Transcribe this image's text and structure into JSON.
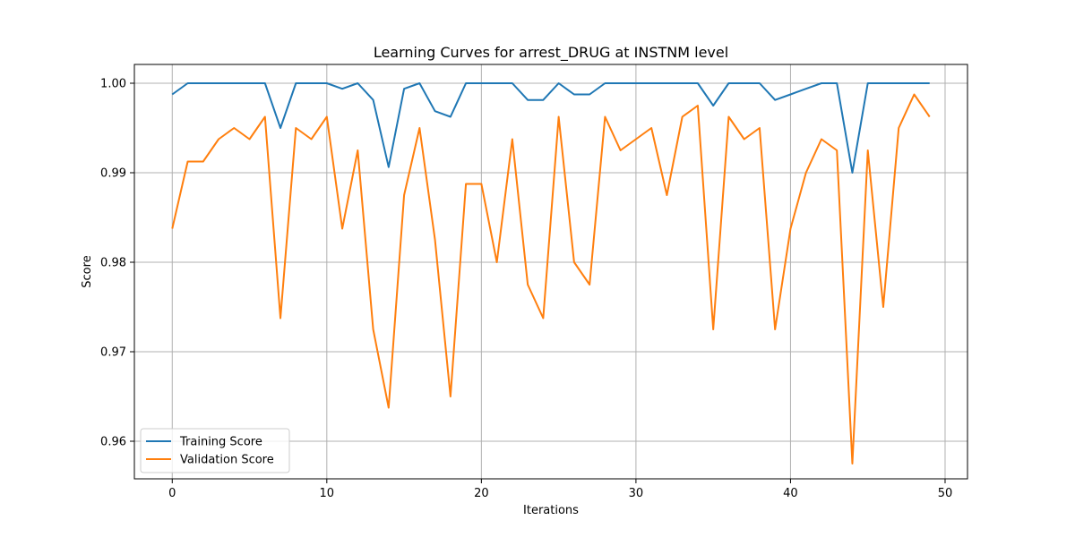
{
  "chart_data": {
    "type": "line",
    "title": "Learning Curves for arrest_DRUG at INSTNM level",
    "xlabel": "Iterations",
    "ylabel": "Score",
    "xlim": [
      -2.45,
      51.45
    ],
    "ylim": [
      0.9558,
      1.0021
    ],
    "xticks": [
      0,
      10,
      20,
      30,
      40,
      50
    ],
    "yticks": [
      0.96,
      0.97,
      0.98,
      0.99,
      1.0
    ],
    "xtick_labels": [
      "0",
      "10",
      "20",
      "30",
      "40",
      "50"
    ],
    "ytick_labels": [
      "0.96",
      "0.97",
      "0.98",
      "0.99",
      "1.00"
    ],
    "grid": true,
    "legend_position": "lower-left",
    "x": [
      0,
      1,
      2,
      3,
      4,
      5,
      6,
      7,
      8,
      9,
      10,
      11,
      12,
      13,
      14,
      15,
      16,
      17,
      18,
      19,
      20,
      21,
      22,
      23,
      24,
      25,
      26,
      27,
      28,
      29,
      30,
      31,
      32,
      33,
      34,
      35,
      36,
      37,
      38,
      39,
      40,
      41,
      42,
      43,
      44,
      45,
      46,
      47,
      48,
      49
    ],
    "series": [
      {
        "name": "Training Score",
        "color": "#1f77b4",
        "values": [
          0.99875,
          1.0,
          1.0,
          1.0,
          1.0,
          1.0,
          1.0,
          0.995,
          1.0,
          1.0,
          1.0,
          0.99938,
          1.0,
          0.99813,
          0.99063,
          0.99938,
          1.0,
          0.99688,
          0.99625,
          1.0,
          1.0,
          1.0,
          1.0,
          0.99813,
          0.99813,
          1.0,
          0.99875,
          0.99875,
          1.0,
          1.0,
          1.0,
          1.0,
          1.0,
          1.0,
          1.0,
          0.9975,
          1.0,
          1.0,
          1.0,
          0.99813,
          0.99875,
          0.99938,
          1.0,
          1.0,
          0.99,
          1.0,
          1.0,
          1.0,
          1.0,
          1.0
        ]
      },
      {
        "name": "Validation Score",
        "color": "#ff7f0e",
        "values": [
          0.98375,
          0.99125,
          0.99125,
          0.99375,
          0.995,
          0.99375,
          0.99625,
          0.97375,
          0.995,
          0.99375,
          0.99625,
          0.98375,
          0.9925,
          0.9725,
          0.96375,
          0.9875,
          0.995,
          0.9825,
          0.965,
          0.98875,
          0.98875,
          0.98,
          0.99375,
          0.9775,
          0.97375,
          0.99625,
          0.98,
          0.9775,
          0.99625,
          0.9925,
          0.99375,
          0.995,
          0.9875,
          0.99625,
          0.9975,
          0.9725,
          0.99625,
          0.99375,
          0.995,
          0.9725,
          0.98375,
          0.99,
          0.99375,
          0.9925,
          0.9575,
          0.9925,
          0.975,
          0.995,
          0.99875,
          0.99625
        ]
      }
    ]
  }
}
